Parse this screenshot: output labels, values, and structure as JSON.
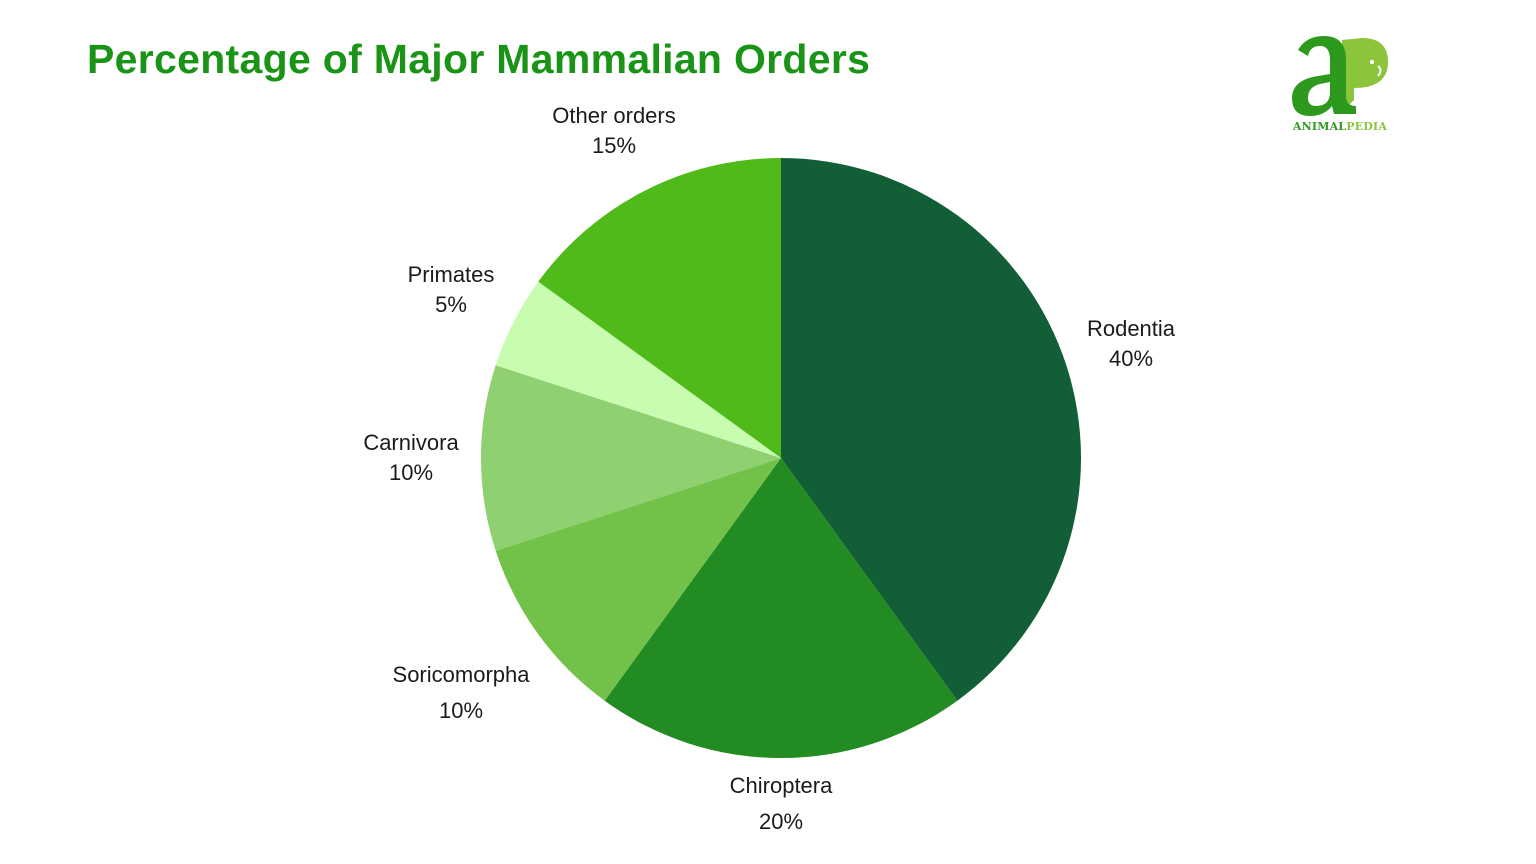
{
  "title": "Percentage of Major Mammalian Orders",
  "logo": {
    "name": "animalpedia-logo-icon",
    "text_part1": "ANIMAL",
    "text_part2": "PEDIA",
    "colors": {
      "dark": "#2d9a1e",
      "light": "#8cc43c"
    }
  },
  "chart_data": {
    "type": "pie",
    "title": "Percentage of Major Mammalian Orders",
    "start_angle": "12 o'clock",
    "direction": "clockwise",
    "legend_position": "none (direct labels)",
    "categories": [
      "Rodentia",
      "Chiroptera",
      "Soricomorpha",
      "Carnivora",
      "Primates",
      "Other orders"
    ],
    "values": [
      40,
      20,
      10,
      10,
      5,
      15
    ],
    "unit": "%",
    "colors": [
      "#125e36",
      "#228b22",
      "#72c24a",
      "#8fd070",
      "#c8fcb0",
      "#4fba1a"
    ],
    "slices": [
      {
        "label": "Rodentia",
        "value": 40,
        "display": "40%",
        "color": "#125e36"
      },
      {
        "label": "Chiroptera",
        "value": 20,
        "display": "20%",
        "color": "#228b22"
      },
      {
        "label": "Soricomorpha",
        "value": 10,
        "display": "10%",
        "color": "#72c24a"
      },
      {
        "label": "Carnivora",
        "value": 10,
        "display": "10%",
        "color": "#8fd070"
      },
      {
        "label": "Primates",
        "value": 5,
        "display": "5%",
        "color": "#c8fcb0"
      },
      {
        "label": "Other orders",
        "value": 15,
        "display": "15%",
        "color": "#4fba1a"
      }
    ]
  }
}
